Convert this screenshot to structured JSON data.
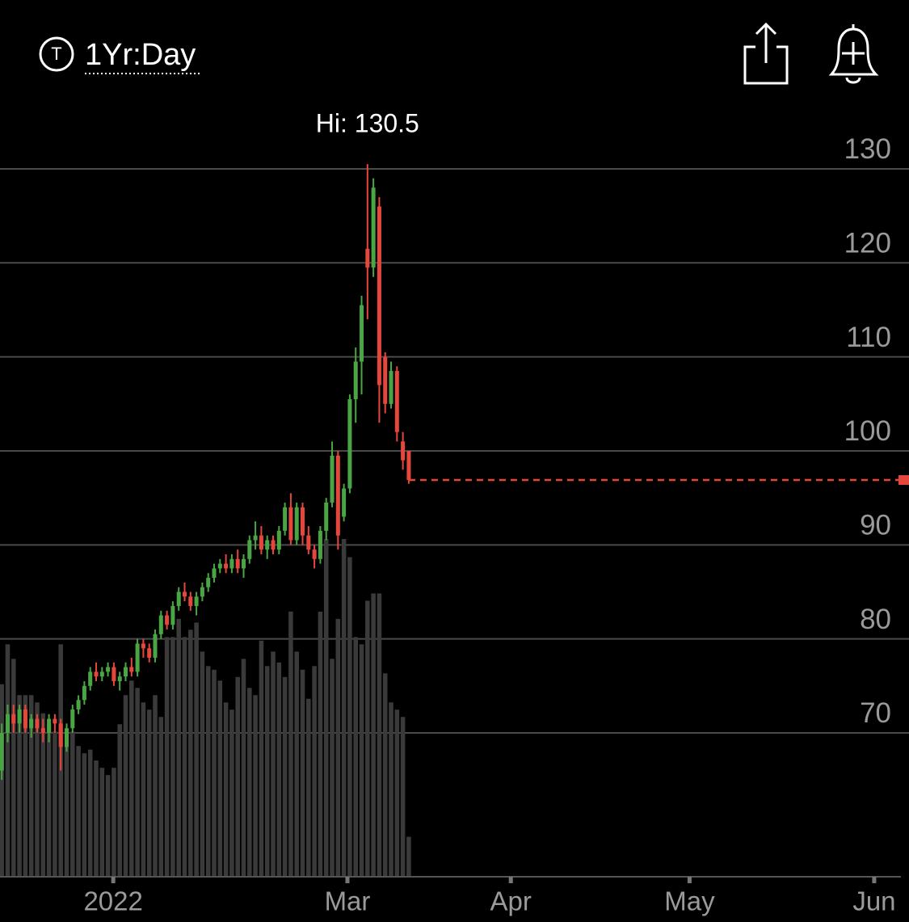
{
  "header": {
    "icon_label": "T",
    "period": "1Yr:Day"
  },
  "chart_data": {
    "type": "candlestick",
    "annotation": "Hi: 130.5",
    "categories": [
      null,
      null,
      null,
      null,
      null,
      null,
      null,
      null,
      null,
      null,
      null,
      null,
      null,
      null,
      null,
      null,
      null,
      null,
      null,
      null,
      null,
      null,
      null,
      null,
      null,
      null,
      null,
      null,
      null,
      null,
      null,
      null,
      null,
      null,
      null,
      null,
      null,
      null,
      null,
      null,
      null,
      null,
      null,
      null,
      null,
      null,
      null,
      null,
      null,
      null,
      null,
      null,
      null,
      null,
      null,
      null,
      null,
      null,
      null,
      null,
      null,
      null,
      null,
      null,
      null,
      null,
      null,
      null,
      null,
      null
    ],
    "open": [
      66,
      70,
      72,
      71,
      72.5,
      70.5,
      71.5,
      70.5,
      70,
      71.5,
      71,
      68.5,
      70.5,
      72.5,
      73.5,
      75,
      76.5,
      76,
      76.5,
      77,
      75.5,
      76,
      77,
      76.5,
      79.5,
      79,
      78,
      80.5,
      82.5,
      81.5,
      83.5,
      85,
      84.5,
      83.5,
      84.5,
      85.5,
      86.5,
      87.5,
      88,
      87.5,
      88.5,
      87.5,
      88.5,
      90.5,
      91,
      89.5,
      90.5,
      89.5,
      91.5,
      94,
      90.5,
      94,
      91,
      89.5,
      88.5,
      91.5,
      94.5,
      99.5,
      93,
      96,
      105.5,
      109.5,
      121.5,
      119.5,
      126,
      110,
      105,
      108.5,
      101,
      100
    ],
    "high": [
      71,
      73,
      73,
      73,
      73,
      72,
      72,
      71.5,
      72,
      72,
      71.5,
      71,
      73,
      74,
      75.5,
      77,
      77.5,
      77,
      77.5,
      77.5,
      76.5,
      77.5,
      78,
      80,
      80,
      79.5,
      81,
      83,
      83,
      84,
      85.5,
      86,
      85,
      85,
      86,
      87,
      88,
      88.5,
      89,
      89,
      89.5,
      89,
      91,
      92.5,
      92,
      91,
      91,
      92,
      94.5,
      95.5,
      94.5,
      94.5,
      92,
      90,
      92,
      95,
      101,
      100,
      96.5,
      106,
      111,
      116.5,
      130.5,
      129,
      127,
      110.5,
      109.5,
      109,
      102,
      100
    ],
    "low": [
      65,
      69,
      70,
      70,
      70,
      69.5,
      70,
      69,
      69,
      70,
      66,
      68,
      70,
      72,
      73,
      74.5,
      75.5,
      75.5,
      76,
      75,
      74.5,
      75.5,
      76,
      76,
      78,
      77.5,
      77.5,
      80,
      81,
      81,
      83,
      84,
      83,
      82.5,
      84,
      85,
      86,
      87,
      87,
      87,
      87,
      86.5,
      88,
      89.5,
      89,
      88.5,
      89,
      89,
      91,
      90,
      90,
      90,
      89,
      87.5,
      88,
      90.5,
      94,
      89.5,
      92.5,
      95.5,
      103,
      106,
      114,
      118.5,
      103,
      104,
      104.5,
      101,
      98,
      96.5
    ],
    "close": [
      70,
      72,
      71,
      72.5,
      70.5,
      71.5,
      70.5,
      70,
      71.5,
      71,
      68.5,
      70.5,
      72.5,
      73.5,
      75,
      76.5,
      76,
      76.5,
      77,
      75.5,
      76,
      77,
      76.5,
      79.5,
      79,
      78,
      80.5,
      82.5,
      81.5,
      83.5,
      85,
      84.5,
      83.5,
      84.5,
      85.5,
      86.5,
      87.5,
      88,
      87.5,
      88.5,
      87.5,
      88.5,
      90.5,
      91,
      89.5,
      90.5,
      89.5,
      91.5,
      94,
      90.5,
      94,
      91,
      89.5,
      88.5,
      91.5,
      94.5,
      99.5,
      91,
      96,
      105.5,
      109.5,
      115.5,
      119.5,
      128,
      107,
      105,
      108.5,
      102,
      99,
      96.9
    ],
    "volume": [
      53,
      64,
      60,
      50,
      50,
      50,
      48,
      45,
      42,
      40,
      64,
      36,
      40,
      36,
      34,
      35,
      32,
      30,
      28,
      30,
      42,
      50,
      54,
      52,
      48,
      46,
      50,
      44,
      66,
      66,
      71,
      66,
      68,
      70,
      62,
      58,
      57,
      54,
      48,
      46,
      55,
      60,
      52,
      50,
      65,
      58,
      62,
      59,
      55,
      73,
      62,
      57,
      49,
      58,
      73,
      93,
      60,
      71,
      93,
      88,
      66,
      64,
      76,
      78,
      78,
      56,
      48,
      46,
      44,
      11
    ],
    "up_color": "#4aa644",
    "down_color": "#e5473d",
    "volume_color": "#3a3a3a",
    "ylim": [
      55,
      135
    ],
    "yticks": [
      70,
      80,
      90,
      100,
      110,
      120,
      130
    ],
    "grid": true,
    "xlim": [
      -0.3,
      153.8
    ],
    "xticks": [
      {
        "value": 18.9,
        "label": "2022"
      },
      {
        "value": 58.6,
        "label": "Mar"
      },
      {
        "value": 86.3,
        "label": "Apr"
      },
      {
        "value": 116.6,
        "label": "May"
      },
      {
        "value": 147.9,
        "label": "Jun"
      }
    ]
  }
}
